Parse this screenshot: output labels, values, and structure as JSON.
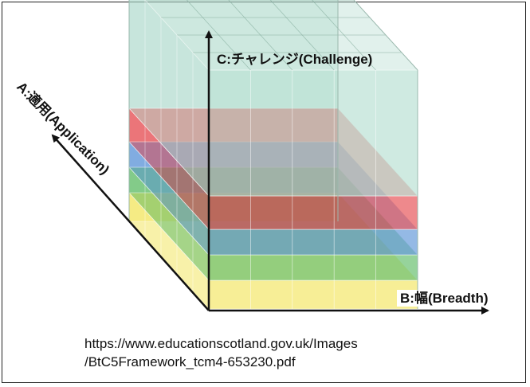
{
  "axes": {
    "c_label": "C:チャレンジ(Challenge)",
    "b_label": "B:幅(Breadth)",
    "a_label": "A:適用(Application)"
  },
  "layers": [
    {
      "name": "yellow",
      "color": "#f0e040"
    },
    {
      "name": "green",
      "color": "#3fae49"
    },
    {
      "name": "blue",
      "color": "#3c7fd0"
    },
    {
      "name": "red",
      "color": "#e0282e"
    },
    {
      "name": "teal",
      "color": "#a8d8c8"
    }
  ],
  "source": {
    "line1": "https://www.educationscotland.gov.uk/Images",
    "line2": "/BtC5Framework_tcm4-653230.pdf"
  }
}
